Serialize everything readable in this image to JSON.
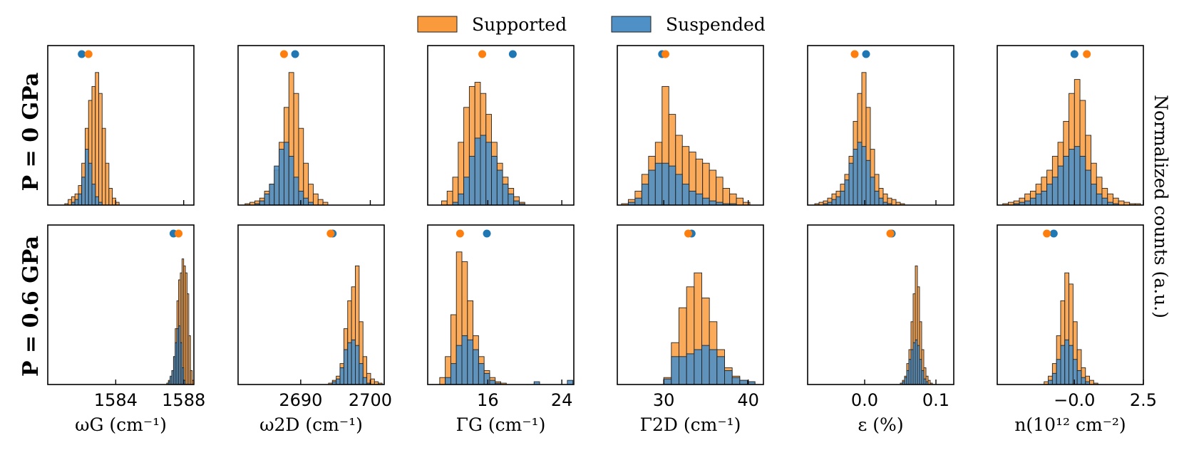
{
  "colors": {
    "supported": "#f99b3c",
    "suspended": "#4f90c6",
    "supported_dot": "#ff7f0e",
    "suspended_dot": "#1f77b4",
    "edge": "#222222"
  },
  "legend": {
    "supported": "Supported",
    "suspended": "Suspended"
  },
  "row_labels": [
    "P = 0 GPa",
    "P = 0.6 GPa"
  ],
  "right_label": "Normalized counts (a.u.)",
  "chart_data": {
    "type": "bar",
    "layout": "2x6 grid of histograms",
    "columns": [
      {
        "xlabel": "ωG (cm⁻¹)",
        "xlim": [
          1580,
          1588.6
        ],
        "ticks": [
          1584,
          1588
        ],
        "tick_labels": [
          "1584",
          "1588"
        ],
        "top_tick_labels": [],
        "ymax": 1.0,
        "rows": [
          {
            "bins": [
              1581.0,
              1581.2,
              1581.4,
              1581.6,
              1581.8,
              1582.0,
              1582.2,
              1582.4,
              1582.6,
              1582.8,
              1583.0,
              1583.2,
              1583.4,
              1583.6,
              1583.8,
              1584.0
            ],
            "supported": [
              0.01,
              0.04,
              0.06,
              0.08,
              0.14,
              0.3,
              0.55,
              0.75,
              0.85,
              0.95,
              0.8,
              0.55,
              0.3,
              0.12,
              0.05,
              0.02
            ],
            "suspended": [
              0.0,
              0.0,
              0.02,
              0.04,
              0.08,
              0.2,
              0.4,
              0.3,
              0.15,
              0.06,
              0.02,
              0.0,
              0.0,
              0.0,
              0.0,
              0.0
            ],
            "dot_supported": 1582.4,
            "dot_suspended": 1582.0
          },
          {
            "bins": [
              1587.0,
              1587.1,
              1587.2,
              1587.3,
              1587.4,
              1587.5,
              1587.6,
              1587.7,
              1587.8,
              1587.9,
              1588.0,
              1588.1,
              1588.2,
              1588.3,
              1588.4,
              1588.5
            ],
            "supported": [
              0.01,
              0.03,
              0.05,
              0.1,
              0.2,
              0.4,
              0.6,
              0.75,
              0.8,
              0.9,
              0.85,
              0.8,
              0.65,
              0.35,
              0.1,
              0.03
            ],
            "suspended": [
              0.0,
              0.02,
              0.06,
              0.1,
              0.2,
              0.3,
              0.4,
              0.42,
              0.3,
              0.12,
              0.03,
              0.0,
              0.0,
              0.0,
              0.0,
              0.0
            ],
            "dot_supported": 1587.7,
            "dot_suspended": 1587.4
          }
        ]
      },
      {
        "xlabel": "ω2D (cm⁻¹)",
        "xlim": [
          2681,
          2702
        ],
        "ticks": [
          2690,
          2700
        ],
        "tick_labels": [
          "2690",
          "2700"
        ],
        "top_tick_labels": [],
        "ymax": 1.0,
        "rows": [
          {
            "bins": [
              2682,
              2682.7,
              2683.4,
              2684.1,
              2684.8,
              2685.5,
              2686.2,
              2686.9,
              2687.6,
              2688.3,
              2689.0,
              2689.7,
              2690.4,
              2691.1,
              2691.8,
              2692.5,
              2693.2
            ],
            "supported": [
              0.01,
              0.02,
              0.03,
              0.05,
              0.1,
              0.15,
              0.25,
              0.45,
              0.7,
              0.95,
              0.8,
              0.55,
              0.3,
              0.15,
              0.08,
              0.04,
              0.02
            ],
            "suspended": [
              0.0,
              0.0,
              0.01,
              0.03,
              0.08,
              0.15,
              0.28,
              0.4,
              0.45,
              0.35,
              0.2,
              0.1,
              0.05,
              0.02,
              0.0,
              0.0,
              0.0
            ],
            "dot_supported": 2687.6,
            "dot_suspended": 2689.2
          },
          {
            "bins": [
              2694,
              2694.55,
              2695.1,
              2695.65,
              2696.2,
              2696.75,
              2697.3,
              2697.85,
              2698.4,
              2698.95,
              2699.5,
              2700.05,
              2700.6,
              2701.15
            ],
            "supported": [
              0.01,
              0.03,
              0.06,
              0.15,
              0.4,
              0.6,
              0.7,
              0.85,
              0.45,
              0.2,
              0.08,
              0.04,
              0.02,
              0.01
            ],
            "suspended": [
              0.0,
              0.02,
              0.04,
              0.12,
              0.25,
              0.3,
              0.32,
              0.28,
              0.15,
              0.05,
              0.01,
              0.0,
              0.0,
              0.0
            ],
            "dot_supported": 2694.3,
            "dot_suspended": 2694.6
          }
        ]
      },
      {
        "xlabel": "ΓG (cm⁻¹)",
        "xlim": [
          9.5,
          25.3
        ],
        "ticks": [
          16,
          24
        ],
        "tick_labels": [
          "16",
          "24"
        ],
        "top_tick_labels": [],
        "ymax": 1.0,
        "rows": [
          {
            "bins": [
              11.0,
              11.6,
              12.2,
              12.8,
              13.4,
              14.0,
              14.6,
              15.2,
              15.8,
              16.4,
              17.0,
              17.6,
              18.2,
              18.8,
              19.4
            ],
            "supported": [
              0.03,
              0.1,
              0.2,
              0.45,
              0.7,
              0.85,
              0.88,
              0.8,
              0.65,
              0.45,
              0.3,
              0.2,
              0.12,
              0.06,
              0.02
            ],
            "suspended": [
              0.0,
              0.0,
              0.02,
              0.08,
              0.2,
              0.35,
              0.48,
              0.5,
              0.45,
              0.35,
              0.25,
              0.15,
              0.08,
              0.03,
              0.01
            ],
            "dot_supported": 15.4,
            "dot_suspended": 18.7
          },
          {
            "bins": [
              10.8,
              11.4,
              12.0,
              12.6,
              13.2,
              13.8,
              14.4,
              15.0,
              15.6,
              16.2,
              16.8,
              17.4,
              18.0,
              18.6,
              19.2,
              19.8,
              20.4,
              21.0,
              21.6,
              22.2,
              22.8,
              23.4,
              24.0,
              24.6
            ],
            "supported": [
              0.05,
              0.2,
              0.5,
              0.95,
              0.88,
              0.6,
              0.35,
              0.2,
              0.1,
              0.05,
              0.02,
              0.01,
              0.0,
              0.0,
              0.0,
              0.0,
              0.0,
              0.0,
              0.0,
              0.0,
              0.0,
              0.0,
              0.0,
              0.0
            ],
            "suspended": [
              0.0,
              0.05,
              0.15,
              0.28,
              0.35,
              0.32,
              0.25,
              0.15,
              0.08,
              0.03,
              0.01,
              0.0,
              0.0,
              0.0,
              0.0,
              0.0,
              0.0,
              0.02,
              0.0,
              0.0,
              0.0,
              0.0,
              0.0,
              0.03
            ],
            "dot_supported": 13.0,
            "dot_suspended": 15.9
          }
        ]
      },
      {
        "xlabel": "Γ2D (cm⁻¹)",
        "xlim": [
          24.5,
          41.8
        ],
        "ticks": [
          30,
          40
        ],
        "tick_labels": [
          "30",
          "40"
        ],
        "top_tick_labels": [],
        "ymax": 1.0,
        "rows": [
          {
            "bins": [
              25.0,
              25.8,
              26.6,
              27.4,
              28.2,
              29.0,
              29.8,
              30.6,
              31.4,
              32.2,
              33.0,
              33.8,
              34.6,
              35.4,
              36.2,
              37.0,
              37.8,
              38.6,
              39.4
            ],
            "supported": [
              0.01,
              0.04,
              0.1,
              0.22,
              0.35,
              0.45,
              0.85,
              0.65,
              0.5,
              0.42,
              0.38,
              0.33,
              0.3,
              0.25,
              0.2,
              0.12,
              0.08,
              0.05,
              0.02
            ],
            "suspended": [
              0.0,
              0.02,
              0.05,
              0.15,
              0.25,
              0.3,
              0.3,
              0.28,
              0.22,
              0.15,
              0.1,
              0.08,
              0.05,
              0.03,
              0.02,
              0.01,
              0.01,
              0.0,
              0.0
            ],
            "dot_supported": 30.2,
            "dot_suspended": 29.8
          },
          {
            "bins": [
              30.0,
              30.9,
              31.8,
              32.7,
              33.6,
              34.5,
              35.4,
              36.3,
              37.2,
              38.1,
              39.0,
              39.9
            ],
            "supported": [
              0.05,
              0.3,
              0.55,
              0.7,
              0.8,
              0.62,
              0.45,
              0.25,
              0.12,
              0.06,
              0.03,
              0.02
            ],
            "suspended": [
              0.04,
              0.2,
              0.2,
              0.22,
              0.25,
              0.28,
              0.25,
              0.2,
              0.1,
              0.05,
              0.03,
              0.02
            ],
            "dot_supported": 32.9,
            "dot_suspended": 33.3
          }
        ]
      },
      {
        "xlabel": "ε (%)",
        "xlim": [
          -0.08,
          0.125
        ],
        "ticks": [
          0.0,
          0.1
        ],
        "tick_labels": [
          "0.0",
          "0.1"
        ],
        "top_tick_labels": [],
        "ymax": 1.0,
        "rows": [
          {
            "bins": [
              -0.07,
              -0.064,
              -0.058,
              -0.052,
              -0.046,
              -0.04,
              -0.034,
              -0.028,
              -0.022,
              -0.016,
              -0.01,
              -0.004,
              0.002,
              0.008,
              0.014,
              0.02,
              0.026,
              0.032,
              0.038,
              0.044,
              0.05
            ],
            "supported": [
              0.01,
              0.02,
              0.03,
              0.05,
              0.08,
              0.1,
              0.15,
              0.22,
              0.35,
              0.6,
              0.8,
              0.95,
              0.7,
              0.4,
              0.22,
              0.12,
              0.08,
              0.05,
              0.04,
              0.02,
              0.01
            ],
            "suspended": [
              0.0,
              0.0,
              0.01,
              0.02,
              0.04,
              0.06,
              0.1,
              0.18,
              0.3,
              0.4,
              0.45,
              0.42,
              0.32,
              0.2,
              0.1,
              0.05,
              0.02,
              0.01,
              0.0,
              0.0,
              0.0
            ],
            "dot_supported": -0.014,
            "dot_suspended": 0.002
          },
          {
            "bins": [
              0.05,
              0.053,
              0.056,
              0.059,
              0.062,
              0.065,
              0.068,
              0.071,
              0.074,
              0.077,
              0.08,
              0.083,
              0.086,
              0.089,
              0.092
            ],
            "supported": [
              0.01,
              0.03,
              0.06,
              0.15,
              0.25,
              0.45,
              0.65,
              0.85,
              0.7,
              0.45,
              0.25,
              0.12,
              0.06,
              0.03,
              0.01
            ],
            "suspended": [
              0.0,
              0.02,
              0.05,
              0.1,
              0.18,
              0.25,
              0.3,
              0.32,
              0.28,
              0.18,
              0.1,
              0.04,
              0.02,
              0.0,
              0.0
            ],
            "dot_supported": 0.036,
            "dot_suspended": 0.038
          }
        ]
      },
      {
        "xlabel": "n(10¹² cm⁻²)",
        "xlim": [
          -2.8,
          2.5
        ],
        "ticks": [
          -0.0,
          2.5
        ],
        "tick_labels": [
          "−0.0",
          "2.5"
        ],
        "top_tick_labels": [],
        "ymax": 1.0,
        "rows": [
          {
            "bins": [
              -2.6,
              -2.4,
              -2.2,
              -2.0,
              -1.8,
              -1.6,
              -1.4,
              -1.2,
              -1.0,
              -0.8,
              -0.6,
              -0.4,
              -0.2,
              0.0,
              0.2,
              0.4,
              0.6,
              0.8,
              1.0,
              1.2,
              1.4,
              1.6,
              1.8,
              2.0,
              2.2
            ],
            "supported": [
              0.01,
              0.02,
              0.03,
              0.05,
              0.08,
              0.1,
              0.15,
              0.2,
              0.25,
              0.35,
              0.45,
              0.6,
              0.8,
              0.9,
              0.75,
              0.5,
              0.3,
              0.2,
              0.12,
              0.08,
              0.05,
              0.03,
              0.02,
              0.01,
              0.01
            ],
            "suspended": [
              0.0,
              0.0,
              0.01,
              0.02,
              0.03,
              0.05,
              0.08,
              0.1,
              0.15,
              0.2,
              0.28,
              0.35,
              0.4,
              0.42,
              0.35,
              0.25,
              0.15,
              0.08,
              0.05,
              0.02,
              0.01,
              0.0,
              0.0,
              0.0,
              0.0
            ],
            "dot_supported": 0.45,
            "dot_suspended": 0.0
          },
          {
            "bins": [
              -1.1,
              -0.95,
              -0.8,
              -0.65,
              -0.5,
              -0.35,
              -0.2,
              -0.05,
              0.1,
              0.25,
              0.4,
              0.55,
              0.7
            ],
            "supported": [
              0.02,
              0.06,
              0.15,
              0.35,
              0.6,
              0.8,
              0.72,
              0.45,
              0.25,
              0.12,
              0.06,
              0.03,
              0.01
            ],
            "suspended": [
              0.0,
              0.03,
              0.08,
              0.18,
              0.28,
              0.32,
              0.28,
              0.18,
              0.1,
              0.05,
              0.02,
              0.0,
              0.0
            ],
            "dot_supported": -1.0,
            "dot_suspended": -0.75
          }
        ]
      }
    ]
  }
}
